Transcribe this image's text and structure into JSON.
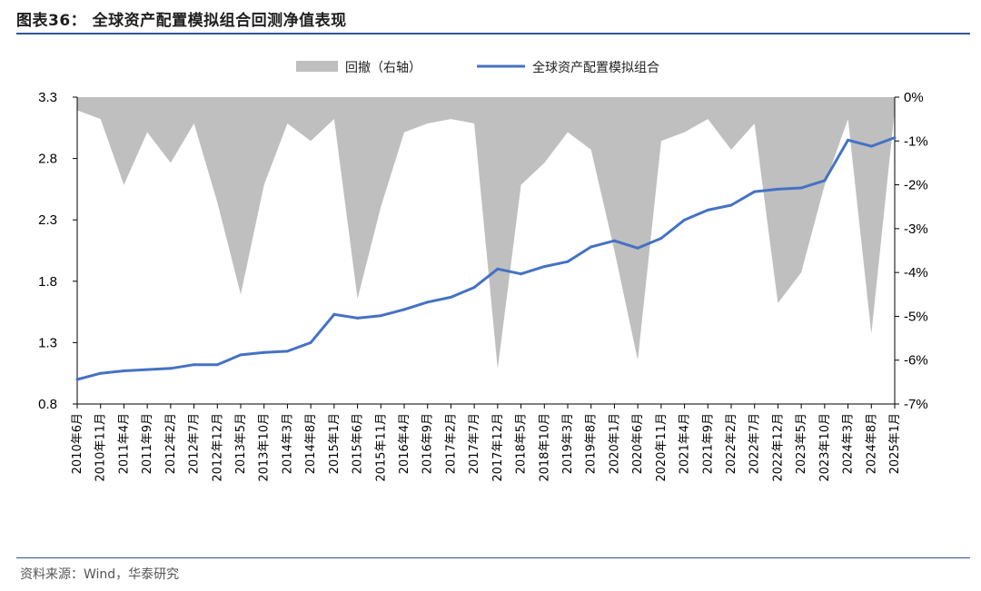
{
  "header": {
    "title": "图表36： 全球资产配置模拟组合回测净值表现"
  },
  "footer": {
    "source": "资料来源：Wind，华泰研究"
  },
  "chart_data": {
    "type": "line",
    "legend": [
      "回撤（右轴）",
      "全球资产配置模拟组合"
    ],
    "legend_position": "top",
    "categories": [
      "2010年6月",
      "2010年11月",
      "2011年4月",
      "2011年9月",
      "2012年2月",
      "2012年7月",
      "2012年12月",
      "2013年5月",
      "2013年10月",
      "2014年3月",
      "2014年8月",
      "2015年1月",
      "2015年6月",
      "2015年11月",
      "2016年4月",
      "2016年9月",
      "2017年2月",
      "2017年7月",
      "2017年12月",
      "2018年5月",
      "2018年10月",
      "2019年3月",
      "2019年8月",
      "2020年1月",
      "2020年6月",
      "2020年11月",
      "2021年4月",
      "2021年9月",
      "2022年2月",
      "2022年7月",
      "2022年12月",
      "2023年5月",
      "2023年10月",
      "2024年3月",
      "2024年8月",
      "2025年1月"
    ],
    "y_left": {
      "ticks": [
        "0.8",
        "1.3",
        "1.8",
        "2.3",
        "2.8",
        "3.3"
      ],
      "ylim": [
        0.8,
        3.3
      ]
    },
    "y_right": {
      "ticks": [
        "-7%",
        "-6%",
        "-5%",
        "-4%",
        "-3%",
        "-2%",
        "-1%",
        "0%"
      ],
      "ylim": [
        -7,
        0
      ]
    },
    "series": [
      {
        "name": "全球资产配置模拟组合",
        "axis": "left",
        "color": "#4472c4",
        "values": [
          1.0,
          1.05,
          1.07,
          1.08,
          1.09,
          1.12,
          1.12,
          1.2,
          1.22,
          1.23,
          1.3,
          1.53,
          1.5,
          1.52,
          1.57,
          1.63,
          1.67,
          1.75,
          1.9,
          1.86,
          1.92,
          1.96,
          2.08,
          2.13,
          2.07,
          2.15,
          2.3,
          2.38,
          2.42,
          2.53,
          2.55,
          2.56,
          2.62,
          2.95,
          2.9,
          2.97
        ]
      },
      {
        "name": "回撤（右轴）",
        "axis": "right",
        "type": "area",
        "color": "#bfbfbf",
        "values": [
          -0.3,
          -0.5,
          -2.0,
          -0.8,
          -1.5,
          -0.6,
          -2.4,
          -4.5,
          -2.0,
          -0.6,
          -1.0,
          -0.5,
          -4.6,
          -2.5,
          -0.8,
          -0.6,
          -0.5,
          -0.6,
          -6.2,
          -2.0,
          -1.5,
          -0.8,
          -1.2,
          -3.5,
          -6.0,
          -1.0,
          -0.8,
          -0.5,
          -1.2,
          -0.6,
          -4.7,
          -4.0,
          -2.0,
          -0.5,
          -5.4,
          -0.3
        ]
      }
    ]
  }
}
